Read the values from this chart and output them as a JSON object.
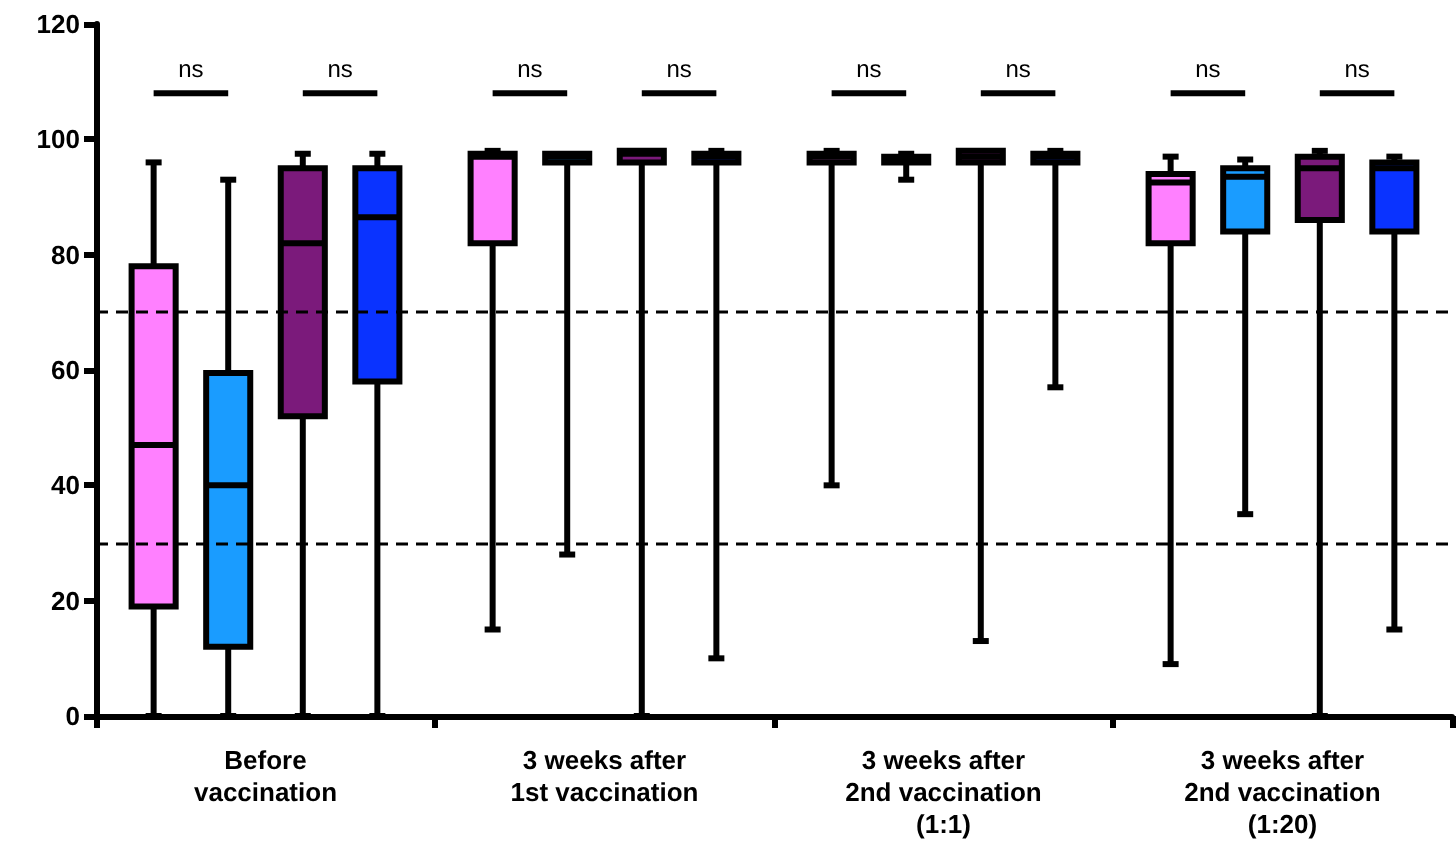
{
  "chart_data": {
    "type": "box",
    "categories": [
      "Before\nvaccination",
      "3 weeks after\n1st vaccination",
      "3 weeks after\n2nd vaccination\n(1:1)",
      "3 weeks after\n2nd vaccination\n(1:20)"
    ],
    "series": [
      {
        "color": "#ff80ff",
        "boxes": [
          {
            "low": 0,
            "q1": 19,
            "median": 47,
            "q3": 78,
            "high": 96
          },
          {
            "low": 15,
            "q1": 82,
            "median": 97,
            "q3": 97.5,
            "high": 98
          },
          {
            "low": 40,
            "q1": 96,
            "median": 97,
            "q3": 97.5,
            "high": 98
          },
          {
            "low": 9,
            "q1": 82,
            "median": 92.5,
            "q3": 94,
            "high": 97
          }
        ]
      },
      {
        "color": "#1a9cff",
        "boxes": [
          {
            "low": 0,
            "q1": 12,
            "median": 40,
            "q3": 59.5,
            "high": 93
          },
          {
            "low": 28,
            "q1": 96,
            "median": 97,
            "q3": 97.5,
            "high": 97.5
          },
          {
            "low": 93,
            "q1": 96,
            "median": 97,
            "q3": 97,
            "high": 97.5
          },
          {
            "low": 35,
            "q1": 84,
            "median": 93.5,
            "q3": 95,
            "high": 96.5
          }
        ]
      },
      {
        "color": "#7b1a7b",
        "boxes": [
          {
            "low": 0,
            "q1": 52,
            "median": 82,
            "q3": 95,
            "high": 97.5
          },
          {
            "low": 0,
            "q1": 96,
            "median": 97.5,
            "q3": 98,
            "high": 98
          },
          {
            "low": 13,
            "q1": 96,
            "median": 97,
            "q3": 98,
            "high": 98
          },
          {
            "low": 0,
            "q1": 86,
            "median": 95,
            "q3": 97,
            "high": 98
          }
        ]
      },
      {
        "color": "#0a33ff",
        "boxes": [
          {
            "low": 0,
            "q1": 58,
            "median": 86.5,
            "q3": 95,
            "high": 97.5
          },
          {
            "low": 10,
            "q1": 96,
            "median": 97,
            "q3": 97.5,
            "high": 98
          },
          {
            "low": 57,
            "q1": 96,
            "median": 97,
            "q3": 97.5,
            "high": 98
          },
          {
            "low": 15,
            "q1": 84,
            "median": 95,
            "q3": 96,
            "high": 97
          }
        ]
      }
    ],
    "ylim": [
      0,
      120
    ],
    "yticks": [
      0,
      20,
      40,
      60,
      80,
      100,
      120
    ],
    "ref_lines": [
      {
        "axis": "y",
        "value": 30,
        "color": "#000000",
        "line_style": "dashed"
      },
      {
        "axis": "y",
        "value": 70,
        "color": "#000000",
        "line_style": "dashed"
      }
    ],
    "annotations": [
      "ns",
      "ns",
      "ns",
      "ns",
      "ns",
      "ns",
      "ns",
      "ns"
    ],
    "grid": false
  }
}
